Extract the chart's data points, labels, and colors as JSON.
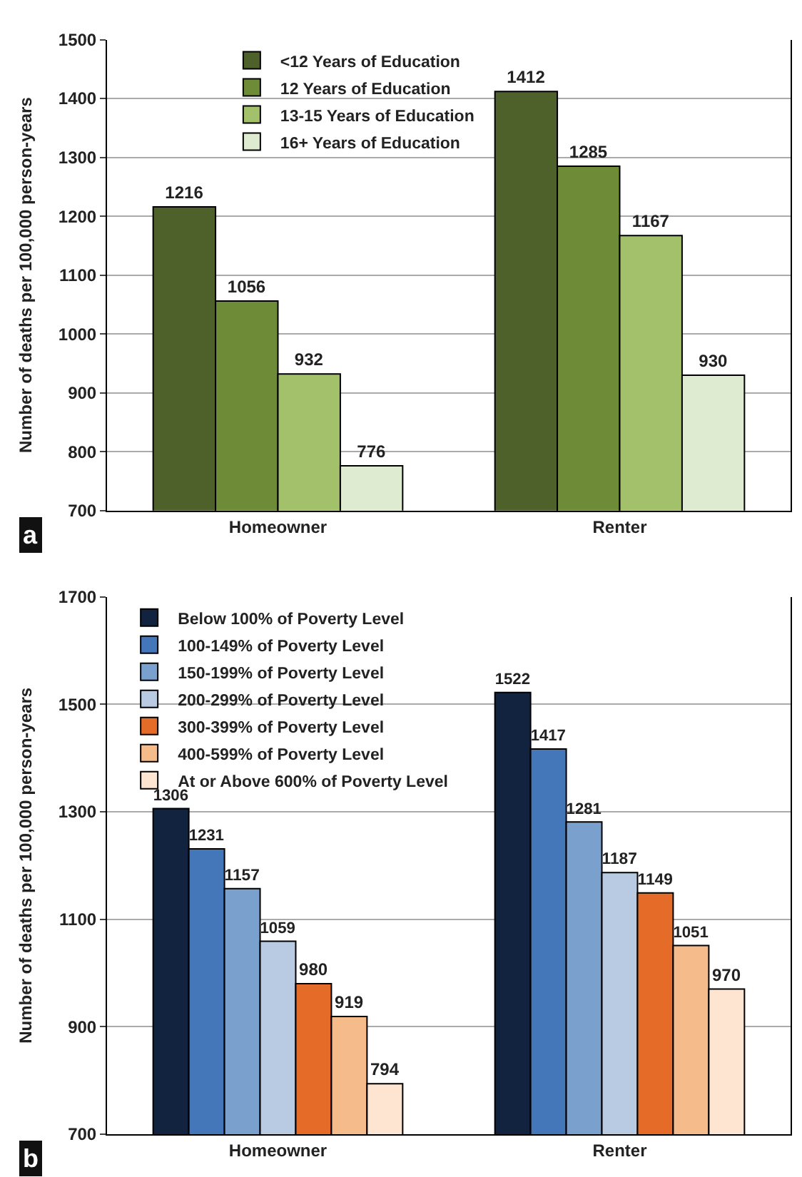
{
  "chart_data": [
    {
      "type": "bar",
      "categories": [
        "Homeowner",
        "Renter"
      ],
      "ylabel": "Number of deaths per 100,000 person-years",
      "ylim": [
        700,
        1500
      ],
      "yticks": [
        700,
        800,
        900,
        1000,
        1100,
        1200,
        1300,
        1400,
        1500
      ],
      "grid": "y",
      "legend": "top left",
      "data_labels": true,
      "annotations": [
        "a"
      ],
      "series": [
        {
          "name": "<12 Years of Education",
          "color": "#4f612a",
          "values": [
            1216,
            1412
          ]
        },
        {
          "name": "12 Years of Education",
          "color": "#6e8b37",
          "values": [
            1056,
            1285
          ]
        },
        {
          "name": "13-15 Years of Education",
          "color": "#a3c06b",
          "values": [
            932,
            1167
          ]
        },
        {
          "name": "16+ Years of Education",
          "color": "#deebd0",
          "values": [
            776,
            930
          ]
        }
      ]
    },
    {
      "type": "bar",
      "categories": [
        "Homeowner",
        "Renter"
      ],
      "ylabel": "Number of deaths per 100,000 person-years",
      "ylim": [
        700,
        1700
      ],
      "yticks": [
        700,
        900,
        1100,
        1300,
        1500,
        1700
      ],
      "grid": "y",
      "legend": "top left",
      "data_labels": true,
      "annotations": [
        "b"
      ],
      "series": [
        {
          "name": "Below 100% of Poverty Level",
          "color": "#11233f",
          "values": [
            1306,
            1522
          ]
        },
        {
          "name": "100-149% of Poverty Level",
          "color": "#4477b9",
          "values": [
            1231,
            1417
          ]
        },
        {
          "name": "150-199% of Poverty Level",
          "color": "#7aa1cd",
          "values": [
            1157,
            1281
          ]
        },
        {
          "name": "200-299% of Poverty Level",
          "color": "#b8cbe3",
          "values": [
            1059,
            1187
          ]
        },
        {
          "name": "300-399% of Poverty Level",
          "color": "#e46c28",
          "values": [
            980,
            1149
          ]
        },
        {
          "name": "400-599% of Poverty Level",
          "color": "#f6bb8b",
          "values": [
            919,
            1051
          ]
        },
        {
          "name": "At or Above 600% of Poverty Level",
          "color": "#fde5d2",
          "values": [
            794,
            970
          ]
        }
      ]
    }
  ]
}
